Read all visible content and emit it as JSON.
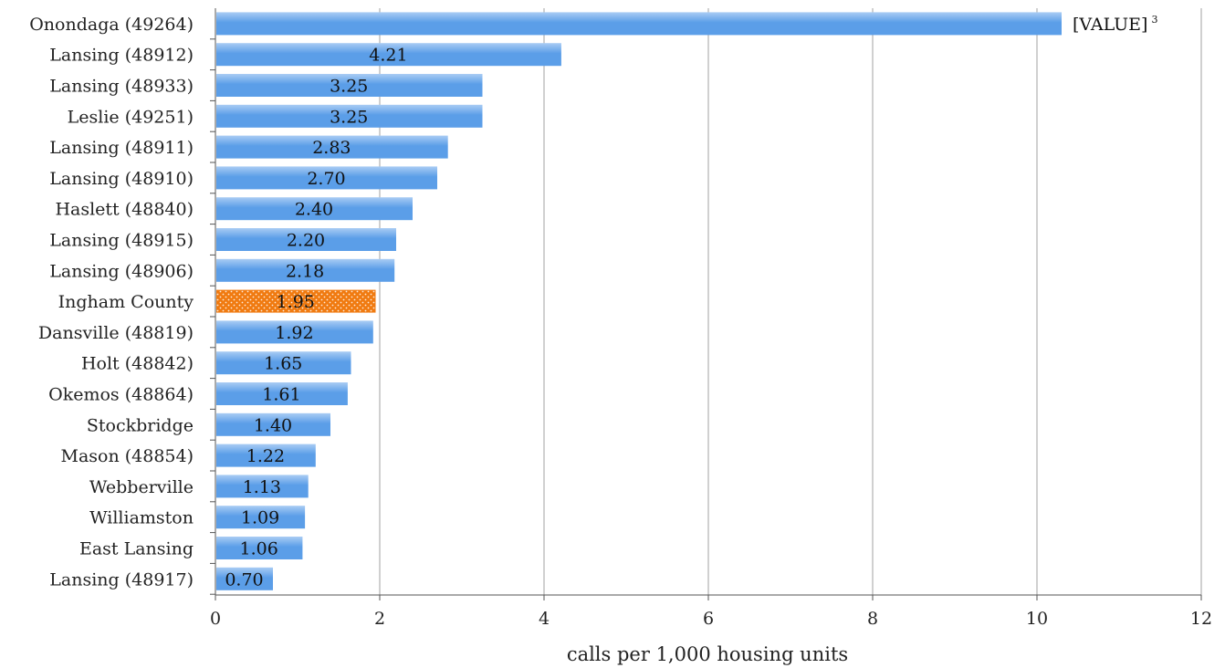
{
  "chart_data": {
    "type": "bar",
    "orientation": "horizontal",
    "categories": [
      "Onondaga (49264)",
      "Lansing (48912)",
      "Lansing (48933)",
      "Leslie (49251)",
      "Lansing (48911)",
      "Lansing (48910)",
      "Haslett (48840)",
      "Lansing (48915)",
      "Lansing (48906)",
      "Ingham County",
      "Dansville (48819)",
      "Holt (48842)",
      "Okemos (48864)",
      "Stockbridge",
      "Mason (48854)",
      "Webberville",
      "Williamston",
      "East Lansing",
      "Lansing (48917)"
    ],
    "values": [
      10.3,
      4.21,
      3.25,
      3.25,
      2.83,
      2.7,
      2.4,
      2.2,
      2.18,
      1.95,
      1.92,
      1.65,
      1.61,
      1.4,
      1.22,
      1.13,
      1.09,
      1.06,
      0.7
    ],
    "data_labels": [
      "[VALUE]",
      "4.21",
      "3.25",
      "3.25",
      "2.83",
      "2.70",
      "2.40",
      "2.20",
      "2.18",
      "1.95",
      "1.92",
      "1.65",
      "1.61",
      "1.40",
      "1.22",
      "1.13",
      "1.09",
      "1.06",
      "0.70"
    ],
    "annotation_superscript": "3",
    "highlight_category": "Ingham County",
    "xlabel": "calls per 1,000 housing units",
    "xlim": [
      0,
      12
    ],
    "xticks": [
      "0",
      "2",
      "4",
      "6",
      "8",
      "10",
      "12"
    ],
    "grid": true,
    "legend": "none",
    "colors": {
      "bar": "#5b9ee8",
      "bar_light": "#a9ccf4",
      "highlight": "#f07a10",
      "grid": "#a0a0a0"
    }
  }
}
